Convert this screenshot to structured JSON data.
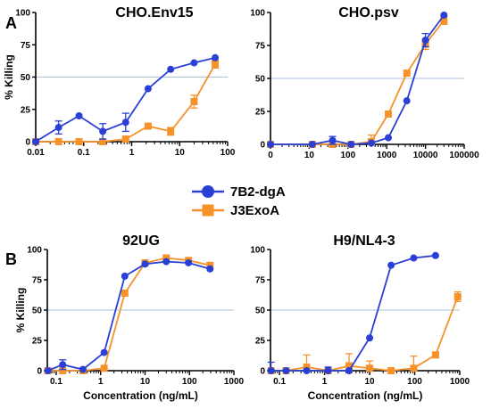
{
  "figure": {
    "panel_letters": [
      "A",
      "B"
    ],
    "colors": {
      "7B2-dgA": "#2a3fd6",
      "J3ExoA": "#f5922a",
      "reference_line": "#a9c3e0",
      "axis": "#000000"
    }
  },
  "legend": {
    "entries": [
      {
        "name": "7B2-dgA",
        "marker": "circle",
        "color": "#2a3fd6"
      },
      {
        "name": "J3ExoA",
        "marker": "square",
        "color": "#f5922a"
      }
    ]
  },
  "chart_data": [
    {
      "type": "line",
      "title": "CHO.Env15",
      "xlabel": "",
      "ylabel": "% Killing",
      "xscale": "log",
      "xlim": [
        0.01,
        100
      ],
      "ylim": [
        0,
        100
      ],
      "xticks": [
        0.01,
        0.1,
        1,
        10,
        100
      ],
      "xtick_labels": [
        "0.01",
        "0.1",
        "1",
        "10",
        "100"
      ],
      "yticks": [
        0,
        25,
        50,
        75,
        100
      ],
      "ytick_labels": [
        "0",
        "25",
        "50",
        "75",
        "100"
      ],
      "reference_line_y": 50,
      "series": [
        {
          "name": "7B2-dgA",
          "marker": "circle",
          "x": [
            0.01,
            0.03,
            0.08,
            0.25,
            0.75,
            2.2,
            6.5,
            20,
            55
          ],
          "y": [
            0,
            11,
            20,
            8,
            15,
            41,
            56,
            61,
            65
          ],
          "err": [
            0,
            5,
            0,
            6,
            7,
            0,
            0,
            0,
            0
          ]
        },
        {
          "name": "J3ExoA",
          "marker": "square",
          "x": [
            0.01,
            0.03,
            0.08,
            0.25,
            0.75,
            2.2,
            6.5,
            20,
            55
          ],
          "y": [
            0,
            0,
            0,
            0,
            2,
            12,
            8,
            31,
            60
          ],
          "err": [
            0,
            0,
            0,
            0,
            0,
            0,
            3,
            5,
            3
          ]
        }
      ]
    },
    {
      "type": "line",
      "title": "CHO.psv",
      "xlabel": "",
      "ylabel": "",
      "xscale": "log",
      "xlim": [
        1,
        100000
      ],
      "ylim": [
        0,
        100
      ],
      "xticks": [
        1,
        10,
        100,
        1000,
        10000,
        100000
      ],
      "xtick_labels": [
        "0",
        "10",
        "100",
        "1000",
        "10000",
        "100000"
      ],
      "yticks": [
        0,
        25,
        50,
        75,
        100
      ],
      "ytick_labels": [
        "0",
        "25",
        "50",
        "75",
        "100"
      ],
      "reference_line_y": 50,
      "series": [
        {
          "name": "7B2-dgA",
          "marker": "circle",
          "x": [
            1,
            12,
            40,
            120,
            400,
            1100,
            3300,
            10000,
            30000
          ],
          "y": [
            0,
            0,
            3,
            0,
            1,
            5,
            33,
            79,
            98
          ],
          "err": [
            0,
            0,
            3,
            0,
            0,
            0,
            0,
            5,
            0
          ]
        },
        {
          "name": "J3ExoA",
          "marker": "square",
          "x": [
            1,
            12,
            40,
            120,
            400,
            1100,
            3300,
            10000,
            30000
          ],
          "y": [
            0,
            0,
            0,
            0,
            2,
            23,
            54,
            76,
            94
          ],
          "err": [
            0,
            0,
            0,
            0,
            5,
            0,
            0,
            4,
            3
          ]
        }
      ]
    },
    {
      "type": "line",
      "title": "92UG",
      "xlabel": "Concentration (ng/mL)",
      "ylabel": "% Killing",
      "xscale": "log",
      "xlim": [
        0.0631,
        1000
      ],
      "ylim": [
        0,
        100
      ],
      "xticks": [
        0.1,
        1,
        10,
        100,
        1000
      ],
      "xtick_labels": [
        "0.1",
        "1",
        "10",
        "100",
        "1000"
      ],
      "yticks": [
        0,
        25,
        50,
        75,
        100
      ],
      "ytick_labels": [
        "0",
        "25",
        "50",
        "75",
        "100"
      ],
      "reference_line_y": 50,
      "series": [
        {
          "name": "7B2-dgA",
          "marker": "circle",
          "x": [
            0.065,
            0.14,
            0.4,
            1.2,
            3.5,
            10,
            30,
            95,
            290
          ],
          "y": [
            0,
            5,
            1,
            15,
            78,
            88,
            90,
            89,
            84
          ],
          "err": [
            0,
            4,
            0,
            0,
            0,
            0,
            0,
            0,
            0
          ]
        },
        {
          "name": "J3ExoA",
          "marker": "square",
          "x": [
            0.065,
            0.14,
            0.4,
            1.2,
            3.5,
            10,
            30,
            95,
            290
          ],
          "y": [
            0,
            0,
            0,
            2,
            64,
            89,
            93,
            91,
            87
          ],
          "err": [
            0,
            0,
            0,
            0,
            0,
            0,
            0,
            0,
            0
          ]
        }
      ]
    },
    {
      "type": "line",
      "title": "H9/NL4-3",
      "xlabel": "Concentration (ng/mL)",
      "ylabel": "",
      "xscale": "log",
      "xlim": [
        0.0631,
        1000
      ],
      "ylim": [
        0,
        100
      ],
      "xticks": [
        0.1,
        1,
        10,
        100,
        1000
      ],
      "xtick_labels": [
        "0.1",
        "1",
        "10",
        "100",
        "1000"
      ],
      "yticks": [
        0,
        25,
        50,
        75,
        100
      ],
      "ytick_labels": [
        "0",
        "25",
        "50",
        "75",
        "100"
      ],
      "reference_line_y": 50,
      "series": [
        {
          "name": "7B2-dgA",
          "marker": "circle",
          "x": [
            0.065,
            0.14,
            0.4,
            1.2,
            3.5,
            10,
            30,
            95,
            290
          ],
          "y": [
            0,
            0,
            0,
            0,
            0,
            27,
            87,
            93,
            95
          ],
          "err": [
            7,
            0,
            0,
            3,
            0,
            0,
            0,
            0,
            0
          ]
        },
        {
          "name": "J3ExoA",
          "marker": "square",
          "x": [
            0.065,
            0.14,
            0.4,
            1.2,
            3.5,
            10,
            30,
            95,
            290,
            900
          ],
          "y": [
            0,
            0,
            3,
            0,
            4,
            2,
            0,
            2,
            13,
            61
          ],
          "err": [
            0,
            0,
            10,
            0,
            10,
            6,
            0,
            10,
            2,
            4
          ]
        }
      ]
    }
  ]
}
